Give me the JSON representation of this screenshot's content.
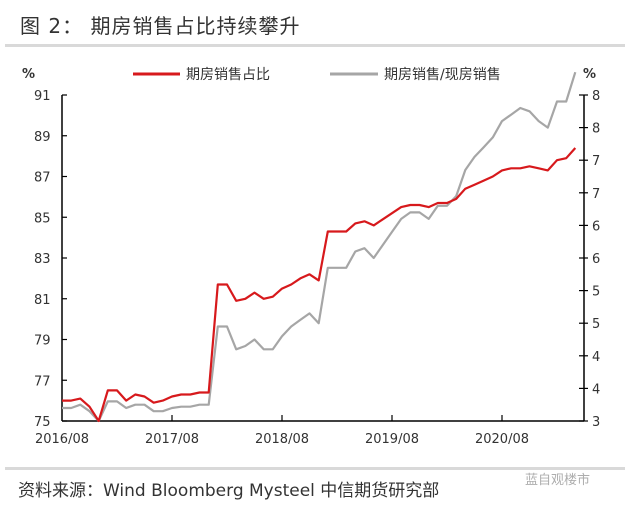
{
  "header": {
    "title": "图 2：  期房销售占比持续攀升"
  },
  "footer": {
    "source": "资料来源：Wind Bloomberg Mysteel 中信期货研究部",
    "watermark": "蓝自观楼市"
  },
  "legend": {
    "series_1": "期房销售占比",
    "series_2": "期房销售/现房销售"
  },
  "axes": {
    "left_unit": "%",
    "right_unit": "%",
    "left_ticks": [
      "75",
      "77",
      "79",
      "81",
      "83",
      "85",
      "87",
      "89",
      "91"
    ],
    "right_ticks": [
      "3",
      "4",
      "4",
      "5",
      "5",
      "6",
      "6",
      "7",
      "7",
      "8",
      "8"
    ],
    "x_ticks": [
      "2016/08",
      "2017/08",
      "2018/08",
      "2019/08",
      "2020/08"
    ]
  },
  "colors": {
    "series_1": "#d7191c",
    "series_2": "#a6a6a6",
    "axis": "#000000"
  },
  "chart_data": {
    "type": "line",
    "title": "期房销售占比持续攀升",
    "xlabel": "",
    "ylabel": "%",
    "ylabel_right": "%",
    "ylim": [
      75,
      91
    ],
    "ylim_right": [
      3,
      8
    ],
    "grid": false,
    "legend_position": "top",
    "x": [
      "2016/08",
      "2016/09",
      "2016/10",
      "2016/11",
      "2016/12",
      "2017/01",
      "2017/02",
      "2017/03",
      "2017/04",
      "2017/05",
      "2017/06",
      "2017/07",
      "2017/08",
      "2017/09",
      "2017/10",
      "2017/11",
      "2017/12",
      "2018/01",
      "2018/02",
      "2018/03",
      "2018/04",
      "2018/05",
      "2018/06",
      "2018/07",
      "2018/08",
      "2018/09",
      "2018/10",
      "2018/11",
      "2018/12",
      "2019/01",
      "2019/02",
      "2019/03",
      "2019/04",
      "2019/05",
      "2019/06",
      "2019/07",
      "2019/08",
      "2019/09",
      "2019/10",
      "2019/11",
      "2019/12",
      "2020/01",
      "2020/02",
      "2020/03",
      "2020/04",
      "2020/05",
      "2020/06",
      "2020/07",
      "2020/08",
      "2020/09",
      "2020/10",
      "2020/11",
      "2020/12",
      "2021/01",
      "2021/02",
      "2021/03",
      "2021/04"
    ],
    "series": [
      {
        "name": "期房销售占比",
        "axis": "left",
        "values": [
          76.0,
          76.0,
          76.1,
          75.7,
          75.0,
          76.5,
          76.5,
          76.0,
          76.3,
          76.2,
          75.9,
          76.0,
          76.2,
          76.3,
          76.3,
          76.4,
          76.4,
          81.7,
          81.7,
          80.9,
          81.0,
          81.3,
          81.0,
          81.1,
          81.5,
          81.7,
          82.0,
          82.2,
          81.9,
          84.3,
          84.3,
          84.3,
          84.7,
          84.8,
          84.6,
          84.9,
          85.2,
          85.5,
          85.6,
          85.6,
          85.5,
          85.7,
          85.7,
          85.9,
          86.4,
          86.6,
          86.8,
          87.0,
          87.3,
          87.4,
          87.4,
          87.5,
          87.4,
          87.3,
          87.8,
          87.9,
          88.4
        ]
      },
      {
        "name": "期房销售/现房销售",
        "axis": "right",
        "values": [
          3.2,
          3.2,
          3.25,
          3.15,
          3.0,
          3.3,
          3.3,
          3.2,
          3.25,
          3.25,
          3.15,
          3.15,
          3.2,
          3.22,
          3.22,
          3.25,
          3.25,
          4.45,
          4.45,
          4.1,
          4.15,
          4.25,
          4.1,
          4.1,
          4.3,
          4.45,
          4.55,
          4.65,
          4.5,
          5.35,
          5.35,
          5.35,
          5.6,
          5.65,
          5.5,
          5.7,
          5.9,
          6.1,
          6.2,
          6.2,
          6.1,
          6.3,
          6.3,
          6.45,
          6.85,
          7.05,
          7.2,
          7.35,
          7.6,
          7.7,
          7.8,
          7.75,
          7.6,
          7.5,
          7.9,
          7.9,
          8.35
        ]
      }
    ]
  }
}
